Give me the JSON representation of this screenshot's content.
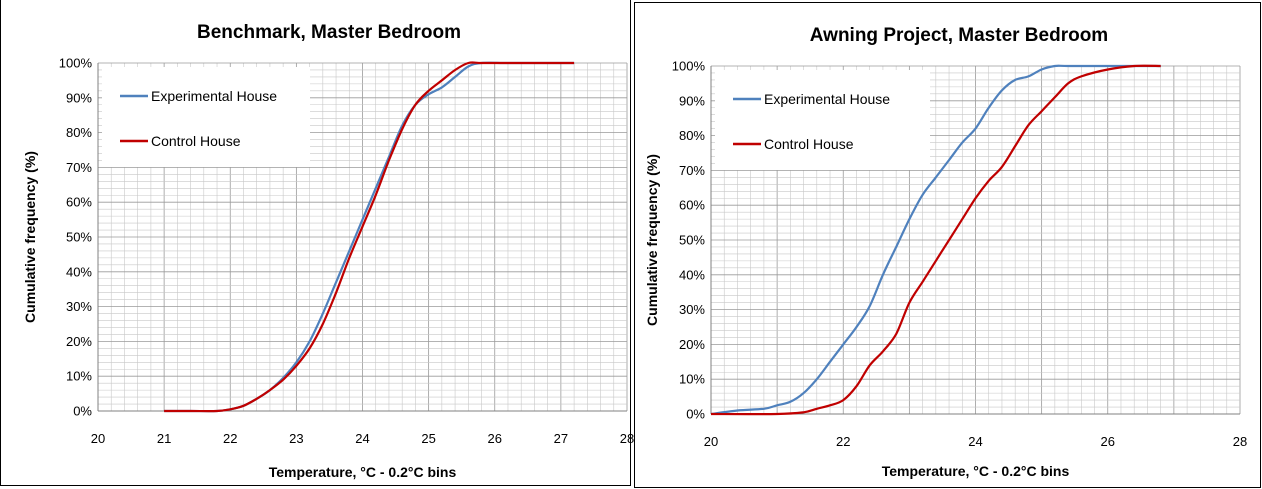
{
  "chart_data": [
    {
      "type": "line",
      "title": "Benchmark, Master Bedroom",
      "xlabel": "Temperature, °C - 0.2°C bins",
      "ylabel": "Cumulative frequency (%)",
      "xlim": [
        20,
        28
      ],
      "ylim": [
        0,
        100
      ],
      "x_ticks": [
        20,
        21,
        22,
        23,
        24,
        25,
        26,
        27,
        28
      ],
      "y_ticks": [
        "0%",
        "10%",
        "20%",
        "30%",
        "40%",
        "50%",
        "60%",
        "70%",
        "80%",
        "90%",
        "100%"
      ],
      "grid": true,
      "legend_position": "top-left",
      "series": [
        {
          "name": "Experimental House",
          "color": "#4f81bd",
          "x": [
            21.0,
            21.4,
            21.8,
            22.0,
            22.2,
            22.4,
            22.6,
            22.8,
            23.0,
            23.2,
            23.4,
            23.6,
            23.8,
            24.0,
            24.2,
            24.4,
            24.6,
            24.8,
            25.0,
            25.2,
            25.4,
            25.6,
            25.8,
            26.2,
            26.8,
            27.2
          ],
          "y": [
            0,
            0,
            0,
            0.5,
            1.5,
            3.5,
            6,
            9.5,
            14,
            20,
            28,
            37,
            46,
            55,
            64,
            73,
            82,
            88,
            91,
            93,
            96,
            99,
            100,
            100,
            100,
            100
          ]
        },
        {
          "name": "Control House",
          "color": "#c00000",
          "x": [
            21.0,
            21.4,
            21.8,
            22.0,
            22.2,
            22.4,
            22.6,
            22.8,
            23.0,
            23.2,
            23.4,
            23.6,
            23.8,
            24.0,
            24.2,
            24.4,
            24.6,
            24.8,
            25.0,
            25.2,
            25.4,
            25.6,
            25.8,
            26.2,
            26.8,
            27.2
          ],
          "y": [
            0,
            0,
            0,
            0.5,
            1.5,
            3.5,
            6,
            9,
            13,
            18,
            25,
            34,
            44,
            53,
            62,
            72,
            81,
            88,
            92,
            95,
            98,
            100,
            100,
            100,
            100,
            100
          ]
        }
      ]
    },
    {
      "type": "line",
      "title": "Awning Project, Master Bedroom",
      "xlabel": "Temperature, °C - 0.2°C bins",
      "ylabel": "Cumulative frequency (%)",
      "xlim": [
        20,
        28
      ],
      "ylim": [
        0,
        100
      ],
      "x_ticks": [
        20,
        22,
        24,
        26,
        28
      ],
      "y_ticks": [
        "0%",
        "10%",
        "20%",
        "30%",
        "40%",
        "50%",
        "60%",
        "70%",
        "80%",
        "90%",
        "100%"
      ],
      "grid": true,
      "legend_position": "top-left",
      "series": [
        {
          "name": "Experimental House",
          "color": "#4f81bd",
          "x": [
            20.0,
            20.4,
            20.8,
            21.0,
            21.2,
            21.4,
            21.6,
            21.8,
            22.0,
            22.2,
            22.4,
            22.6,
            22.8,
            23.0,
            23.2,
            23.4,
            23.6,
            23.8,
            24.0,
            24.2,
            24.4,
            24.6,
            24.8,
            25.0,
            25.2,
            25.4,
            26.0,
            26.8
          ],
          "y": [
            0,
            1,
            1.5,
            2.5,
            3.5,
            6,
            10,
            15,
            20,
            25,
            31,
            40,
            48,
            56,
            63,
            68,
            73,
            78,
            82,
            88,
            93,
            96,
            97,
            99,
            100,
            100,
            100,
            100
          ]
        },
        {
          "name": "Control House",
          "color": "#c00000",
          "x": [
            20.0,
            21.0,
            21.4,
            21.6,
            21.8,
            22.0,
            22.2,
            22.4,
            22.6,
            22.8,
            23.0,
            23.2,
            23.4,
            23.6,
            23.8,
            24.0,
            24.2,
            24.4,
            24.6,
            24.8,
            25.0,
            25.2,
            25.4,
            25.6,
            26.0,
            26.4,
            26.8
          ],
          "y": [
            0,
            0,
            0.5,
            1.5,
            2.5,
            4,
            8,
            14,
            18,
            23,
            32,
            38,
            44,
            50,
            56,
            62,
            67,
            71,
            77,
            83,
            87,
            91,
            95,
            97,
            99,
            100,
            100
          ]
        }
      ]
    }
  ]
}
